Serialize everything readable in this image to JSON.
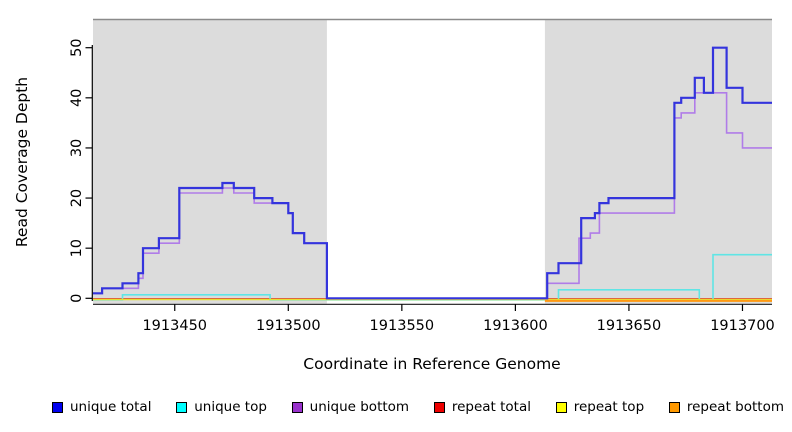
{
  "figure": {
    "xlabel": "Coordinate in Reference Genome",
    "ylabel": "Read Coverage Depth"
  },
  "legend": {
    "items": [
      {
        "label": "unique total",
        "color": "#0000EE"
      },
      {
        "label": "unique top",
        "color": "#00FFFF"
      },
      {
        "label": "unique bottom",
        "color": "#9932CC"
      },
      {
        "label": "repeat total",
        "color": "#EE0000"
      },
      {
        "label": "repeat top",
        "color": "#FFFF00"
      },
      {
        "label": "repeat bottom",
        "color": "#FF9900"
      }
    ]
  },
  "chart_data": {
    "type": "line",
    "subtype": "step",
    "title": "",
    "xlabel": "Coordinate in Reference Genome",
    "ylabel": "Read Coverage Depth",
    "xlim": [
      1913414,
      1913713
    ],
    "ylim": [
      0,
      55
    ],
    "xticks": [
      1913450,
      1913500,
      1913550,
      1913600,
      1913650,
      1913700
    ],
    "yticks": [
      0,
      10,
      20,
      30,
      40,
      50
    ],
    "grid": false,
    "legend_position": "bottom",
    "shaded_regions": [
      {
        "x0": 1913414,
        "x1": 1913517,
        "color": "#DCDCDC"
      },
      {
        "x0": 1913613,
        "x1": 1913713,
        "color": "#DCDCDC"
      }
    ],
    "series": [
      {
        "name": "unique total",
        "color": "#3434DD",
        "width": 2.2,
        "steps": [
          [
            1913414,
            1
          ],
          [
            1913418,
            2
          ],
          [
            1913427,
            3
          ],
          [
            1913434,
            5
          ],
          [
            1913436,
            10
          ],
          [
            1913443,
            12
          ],
          [
            1913452,
            22
          ],
          [
            1913471,
            23
          ],
          [
            1913476,
            22
          ],
          [
            1913485,
            20
          ],
          [
            1913493,
            19
          ],
          [
            1913500,
            17
          ],
          [
            1913502,
            13
          ],
          [
            1913507,
            11
          ],
          [
            1913517,
            0
          ],
          [
            1913614,
            5
          ],
          [
            1913619,
            7
          ],
          [
            1913629,
            16
          ],
          [
            1913635,
            17
          ],
          [
            1913637,
            19
          ],
          [
            1913641,
            20
          ],
          [
            1913670,
            39
          ],
          [
            1913673,
            40
          ],
          [
            1913679,
            44
          ],
          [
            1913683,
            41
          ],
          [
            1913687,
            50
          ],
          [
            1913693,
            42
          ],
          [
            1913700,
            39
          ],
          [
            1913713,
            39
          ]
        ]
      },
      {
        "name": "unique top",
        "color": "#5FE5E5",
        "width": 1.6,
        "steps": [
          [
            1913414,
            0
          ],
          [
            1913427,
            1
          ],
          [
            1913492,
            0
          ],
          [
            1913619,
            2
          ],
          [
            1913681,
            0
          ],
          [
            1913687,
            9
          ],
          [
            1913713,
            9
          ]
        ]
      },
      {
        "name": "unique bottom",
        "color": "#B07CE8",
        "width": 1.6,
        "steps": [
          [
            1913414,
            1
          ],
          [
            1913418,
            2
          ],
          [
            1913427,
            2
          ],
          [
            1913434,
            4
          ],
          [
            1913436,
            9
          ],
          [
            1913443,
            11
          ],
          [
            1913452,
            21
          ],
          [
            1913471,
            22
          ],
          [
            1913476,
            21
          ],
          [
            1913485,
            19
          ],
          [
            1913493,
            19
          ],
          [
            1913500,
            17
          ],
          [
            1913502,
            13
          ],
          [
            1913507,
            11
          ],
          [
            1913517,
            0
          ],
          [
            1913614,
            3
          ],
          [
            1913628,
            12
          ],
          [
            1913633,
            13
          ],
          [
            1913637,
            17
          ],
          [
            1913670,
            36
          ],
          [
            1913673,
            37
          ],
          [
            1913679,
            41
          ],
          [
            1913693,
            33
          ],
          [
            1913700,
            30
          ],
          [
            1913713,
            30
          ]
        ]
      },
      {
        "name": "repeat total",
        "color": "#DD2222",
        "width": 1.6,
        "steps": [
          [
            1913414,
            0
          ],
          [
            1913713,
            0
          ]
        ]
      },
      {
        "name": "repeat top",
        "color": "#E8E030",
        "width": 1.6,
        "steps": [
          [
            1913414,
            0
          ],
          [
            1913713,
            0
          ]
        ]
      },
      {
        "name": "repeat bottom",
        "color": "#FF9912",
        "width": 2.0,
        "steps": [
          [
            1913414,
            null
          ],
          [
            1913427,
            0
          ],
          [
            1913492,
            null
          ],
          [
            1913613,
            0
          ],
          [
            1913713,
            0
          ]
        ]
      }
    ]
  }
}
